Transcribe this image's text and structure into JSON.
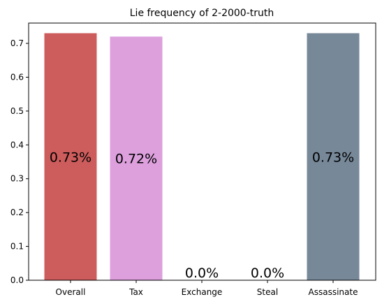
{
  "chart_data": {
    "type": "bar",
    "title": "Lie frequency of 2-2000-truth",
    "xlabel": "",
    "ylabel": "",
    "categories": [
      "Overall",
      "Tax",
      "Exchange",
      "Steal",
      "Assassinate"
    ],
    "values": [
      0.73,
      0.72,
      0.0,
      0.0,
      0.73
    ],
    "bar_labels": [
      "0.73%",
      "0.72%",
      "0.0%",
      "0.0%",
      "0.73%"
    ],
    "colors": [
      "#cd5c5c",
      "#dda0dd",
      "#6495ed",
      "#ffa500",
      "#778899"
    ],
    "ylim": [
      0,
      0.76
    ],
    "yticks": [
      0.0,
      0.1,
      0.2,
      0.3,
      0.4,
      0.5,
      0.6,
      0.7
    ],
    "ytick_labels": [
      "0.0",
      "0.1",
      "0.2",
      "0.3",
      "0.4",
      "0.5",
      "0.6",
      "0.7"
    ],
    "grid": false,
    "legend": "none"
  }
}
